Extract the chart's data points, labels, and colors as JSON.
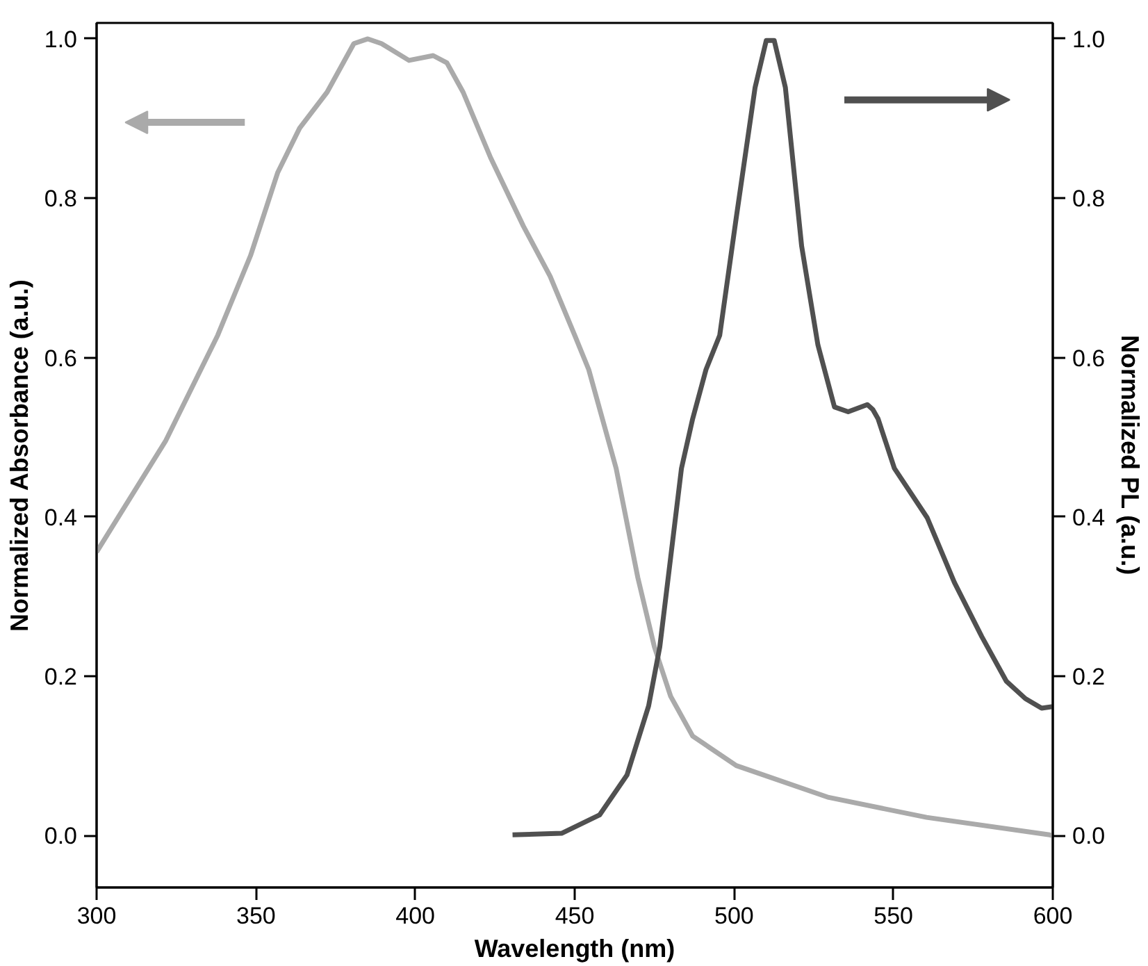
{
  "chart_data": {
    "type": "line",
    "xlabel": "Wavelength (nm)",
    "ylabel": "Normalized Absorbance (a.u.)",
    "y2label": "Normalized PL (a.u.)",
    "xlim": [
      300,
      600
    ],
    "xticks": [
      300,
      350,
      400,
      450,
      500,
      550,
      600
    ],
    "ylim": [
      -0.065,
      1.02
    ],
    "yticks": [
      {
        "value": 0,
        "label": "0.0"
      },
      0.2,
      0.4,
      0.6,
      0.8,
      {
        "value": 1,
        "label": "1.0"
      }
    ],
    "y2lim": [
      -0.065,
      1.02
    ],
    "y2ticks": [
      {
        "value": 0,
        "label": "0.0"
      },
      0.2,
      0.4,
      0.6,
      0.8,
      {
        "value": 1,
        "label": "1.0"
      }
    ],
    "grid": false,
    "marker": "none",
    "line_style": "solid",
    "series": [
      {
        "color": "#aaaaaa",
        "x": [
          300,
          321.6,
          338,
          348.3,
          356.8,
          363.7,
          372.3,
          380.7,
          385.1,
          389.4,
          398,
          405.6,
          409.9,
          415,
          423.6,
          433.9,
          442.3,
          450,
          454.4,
          463,
          469.8,
          475,
          480.1,
          487,
          500.7,
          529.7,
          560.4,
          599,
          600
        ],
        "values": [
          0.356,
          0.495,
          0.628,
          0.728,
          0.832,
          0.888,
          0.933,
          0.994,
          1.0,
          0.994,
          0.973,
          0.979,
          0.97,
          0.933,
          0.851,
          0.765,
          0.702,
          0.628,
          0.585,
          0.461,
          0.324,
          0.237,
          0.175,
          0.125,
          0.088,
          0.048,
          0.023,
          0.001,
          0.0
        ]
      },
      {
        "color": "#505050",
        "axis": "y2",
        "x": [
          430.5,
          445.9,
          457.8,
          466.4,
          473.2,
          476.7,
          480.1,
          483.5,
          487,
          491.2,
          495.5,
          500.7,
          506.6,
          510.1,
          512.6,
          516.1,
          521.2,
          526.3,
          531.5,
          535.8,
          541.8,
          543.5,
          545.2,
          550.3,
          560.6,
          569.1,
          577.7,
          585.4,
          591.4,
          596.5,
          600
        ],
        "values": [
          0.001,
          0.003,
          0.026,
          0.076,
          0.163,
          0.237,
          0.349,
          0.461,
          0.523,
          0.585,
          0.628,
          0.776,
          0.939,
          0.998,
          0.998,
          0.939,
          0.74,
          0.616,
          0.538,
          0.532,
          0.541,
          0.535,
          0.523,
          0.461,
          0.399,
          0.318,
          0.25,
          0.194,
          0.172,
          0.16,
          0.162
        ]
      }
    ]
  }
}
